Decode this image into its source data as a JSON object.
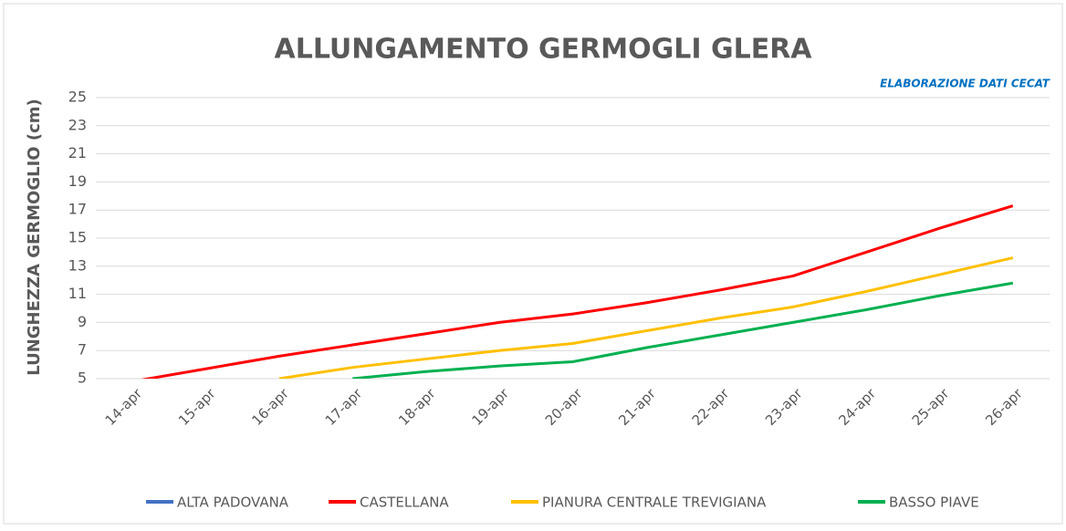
{
  "chart_data": {
    "type": "line",
    "title": "ALLUNGAMENTO GERMOGLI GLERA",
    "subtitle": "ELABORAZIONE DATI CECAT",
    "y_label": "LUNGHEZZA GERMOGLIO (cm)",
    "categories": [
      "14-apr",
      "15-apr",
      "16-apr",
      "17-apr",
      "18-apr",
      "19-apr",
      "20-apr",
      "21-apr",
      "22-apr",
      "23-apr",
      "24-apr",
      "25-apr",
      "26-apr"
    ],
    "series": [
      {
        "name": "ALTA PADOVANA",
        "color": "#4472c4",
        "values": [
          null,
          null,
          null,
          null,
          null,
          null,
          null,
          null,
          null,
          null,
          null,
          null,
          null
        ]
      },
      {
        "name": "CASTELLANA",
        "color": "#ff0000",
        "values": [
          4.8,
          5.7,
          6.6,
          7.4,
          8.2,
          9.0,
          9.6,
          10.4,
          11.3,
          12.3,
          14.0,
          15.7,
          17.3
        ]
      },
      {
        "name": "PIANURA CENTRALE TREVIGIANA",
        "color": "#ffc000",
        "values": [
          null,
          null,
          5.0,
          5.8,
          6.4,
          7.0,
          7.5,
          8.4,
          9.3,
          10.1,
          11.2,
          12.4,
          13.6
        ]
      },
      {
        "name": "BASSO PIAVE",
        "color": "#00b050",
        "values": [
          null,
          null,
          null,
          5.0,
          5.5,
          5.9,
          6.2,
          7.2,
          8.1,
          9.0,
          9.9,
          10.9,
          11.8
        ]
      }
    ],
    "ylim": [
      5,
      25
    ],
    "yticks": [
      5,
      7,
      9,
      11,
      13,
      15,
      17,
      19,
      21,
      23,
      25
    ],
    "grid": true
  }
}
